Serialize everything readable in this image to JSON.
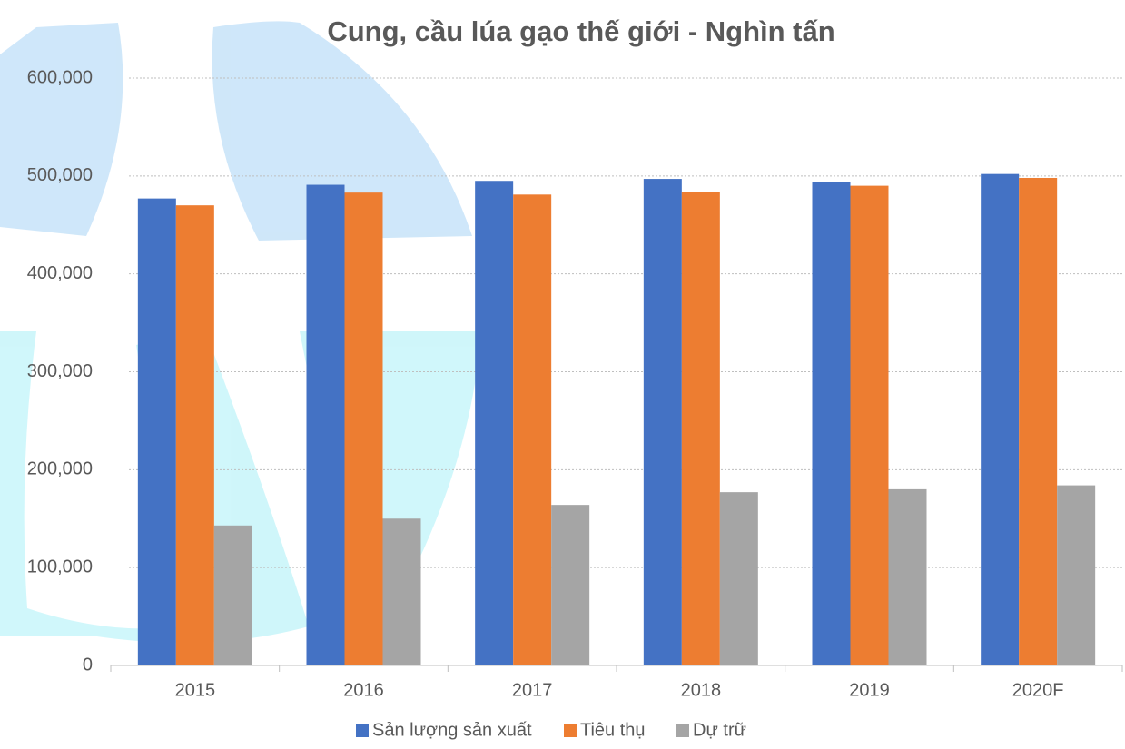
{
  "chart_data": {
    "type": "bar",
    "title": "Cung, cầu lúa gạo thế giới - Nghìn tấn",
    "categories": [
      "2015",
      "2016",
      "2017",
      "2018",
      "2019",
      "2020F"
    ],
    "series": [
      {
        "name": "Sản lượng sản xuất",
        "color": "#4472c4",
        "values": [
          477000,
          491000,
          495000,
          497000,
          494000,
          502000
        ]
      },
      {
        "name": "Tiêu thụ",
        "color": "#ed7d31",
        "values": [
          470000,
          483000,
          481000,
          484000,
          490000,
          498000
        ]
      },
      {
        "name": "Dự trữ",
        "color": "#a5a5a5",
        "values": [
          143000,
          150000,
          164000,
          177000,
          180000,
          184000
        ]
      }
    ],
    "ylim": [
      0,
      600000
    ],
    "yticks": [
      0,
      {
        "value": 100000,
        "label": "100,000"
      },
      {
        "value": 200000,
        "label": "200,000"
      },
      {
        "value": 300000,
        "label": "300,000"
      },
      {
        "value": 400000,
        "label": "400,000"
      },
      {
        "value": 500000,
        "label": "500,000"
      },
      {
        "value": 600000,
        "label": "600,000"
      }
    ],
    "grid": true,
    "legend": "bottom"
  }
}
